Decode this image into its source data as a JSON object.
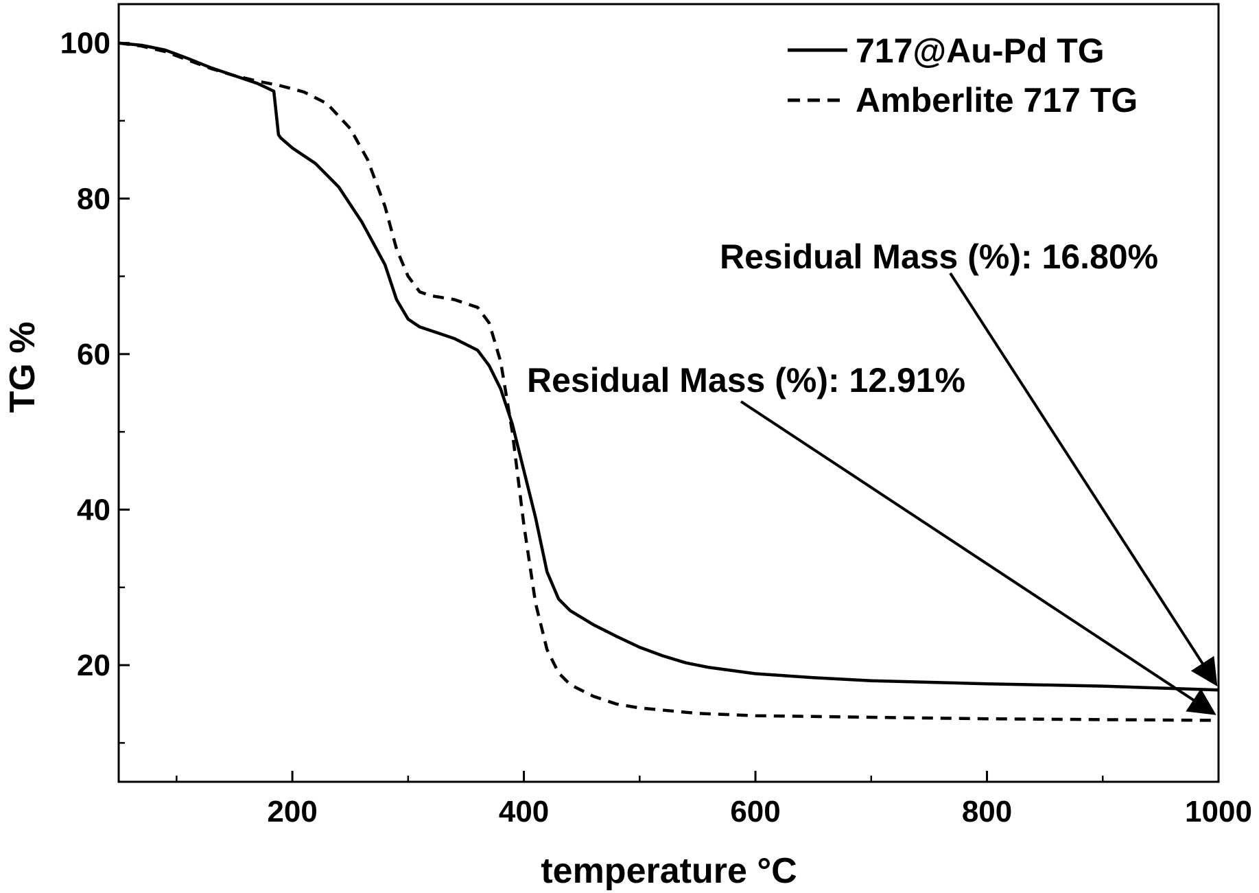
{
  "chart_data": {
    "type": "line",
    "title": "",
    "xlabel": "temperature °C",
    "ylabel": "TG %",
    "xlim": [
      50,
      1000
    ],
    "ylim": [
      5,
      105
    ],
    "x_ticks": [
      200,
      400,
      600,
      800,
      1000
    ],
    "x_tick_labels": [
      "200",
      "400",
      "600",
      "800",
      "1000"
    ],
    "x_minor_ticks": [
      100,
      300,
      500,
      700,
      900
    ],
    "y_ticks": [
      20,
      40,
      60,
      80,
      100
    ],
    "y_tick_labels": [
      "20",
      "40",
      "60",
      "80",
      "100"
    ],
    "y_minor_ticks": [
      10,
      30,
      50,
      70,
      90
    ],
    "grid": false,
    "legend_position": "top-right",
    "series": [
      {
        "name": "717@Au-Pd TG",
        "style": "solid",
        "color": "#000000",
        "x": [
          50,
          70,
          90,
          110,
          130,
          150,
          170,
          184,
          186,
          188,
          190,
          200,
          220,
          240,
          260,
          280,
          290,
          300,
          310,
          320,
          340,
          360,
          370,
          380,
          390,
          400,
          410,
          420,
          430,
          440,
          460,
          480,
          500,
          520,
          540,
          560,
          600,
          650,
          700,
          800,
          900,
          1000
        ],
        "y": [
          100,
          99.7,
          99.1,
          98.0,
          96.8,
          95.8,
          94.8,
          93.8,
          91.0,
          88.2,
          87.8,
          86.5,
          84.5,
          81.5,
          77.0,
          71.5,
          67.0,
          64.5,
          63.5,
          63.0,
          62.0,
          60.5,
          58.5,
          55.5,
          51.0,
          45.0,
          39.0,
          32.0,
          28.5,
          27.0,
          25.2,
          23.7,
          22.3,
          21.2,
          20.3,
          19.7,
          18.9,
          18.4,
          18.0,
          17.6,
          17.3,
          16.8
        ]
      },
      {
        "name": "Amberlite 717 TG",
        "style": "dashed",
        "color": "#000000",
        "x": [
          50,
          70,
          90,
          110,
          130,
          150,
          170,
          190,
          210,
          230,
          250,
          265,
          280,
          290,
          300,
          310,
          320,
          340,
          360,
          370,
          380,
          390,
          400,
          410,
          420,
          430,
          440,
          460,
          480,
          500,
          550,
          600,
          700,
          800,
          900,
          1000
        ],
        "y": [
          100,
          99.6,
          98.9,
          97.8,
          96.7,
          95.8,
          95.1,
          94.5,
          93.7,
          92.2,
          89.0,
          85.0,
          79.0,
          73.5,
          70.0,
          68.0,
          67.5,
          67.0,
          66.0,
          64.0,
          59.0,
          50.0,
          38.0,
          28.0,
          22.0,
          19.0,
          17.5,
          16.0,
          15.0,
          14.5,
          13.8,
          13.5,
          13.3,
          13.1,
          13.0,
          12.9
        ]
      }
    ],
    "annotations": [
      {
        "text": "Residual Mass (%): 16.80%",
        "target_x": 1000,
        "target_y": 16.8
      },
      {
        "text": "Residual Mass (%): 12.91%",
        "target_x": 1000,
        "target_y": 12.91
      }
    ]
  }
}
